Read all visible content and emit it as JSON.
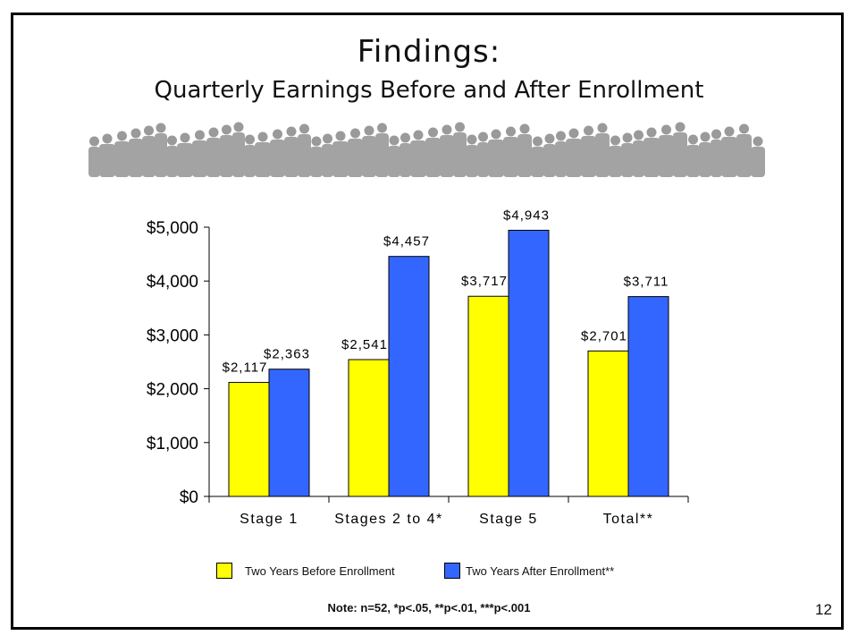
{
  "slide": {
    "title": "Findings:",
    "subtitle": "Quarterly Earnings Before and After Enrollment",
    "note": "Note: n=52, *p<.05, **p<.01, ***p<.001",
    "page_number": "12",
    "decoration_icon": "crowd-silhouette-icon"
  },
  "chart_data": {
    "type": "bar",
    "categories": [
      "Stage 1",
      "Stages 2 to 4*",
      "Stage 5",
      "Total**"
    ],
    "series": [
      {
        "name": "Two Years Before Enrollment",
        "values": [
          2117,
          2541,
          3717,
          2701
        ],
        "labels": [
          "$2,117",
          "$2,541",
          "$3,717",
          "$2,701"
        ],
        "color": "#ffff00"
      },
      {
        "name": "Two Years After Enrollment**",
        "values": [
          2363,
          4457,
          4943,
          3711
        ],
        "labels": [
          "$2,363",
          "$4,457",
          "$4,943",
          "$3,711"
        ],
        "color": "#3366ff"
      }
    ],
    "yticks": [
      0,
      1000,
      2000,
      3000,
      4000,
      5000
    ],
    "ytick_labels": [
      "$0",
      "$1,000",
      "$2,000",
      "$3,000",
      "$4,000",
      "$5,000"
    ],
    "ylim": [
      0,
      5000
    ],
    "grid": false,
    "legend_position": "bottom"
  }
}
